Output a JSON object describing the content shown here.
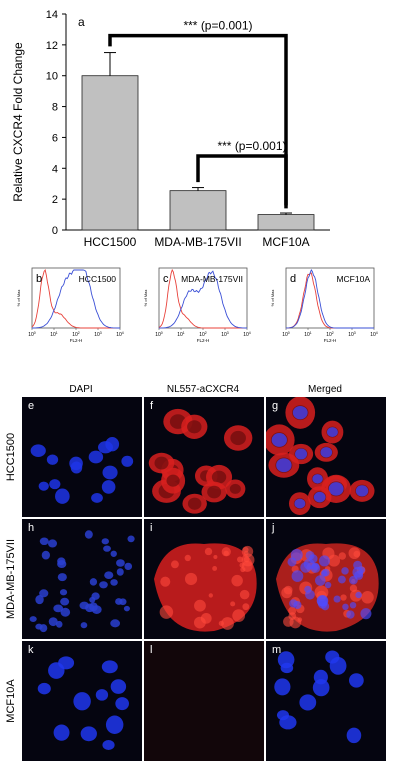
{
  "chart_data": [
    {
      "type": "bar",
      "panel": "a",
      "ylabel": "Relative CXCR4 Fold Change",
      "categories": [
        "HCC1500",
        "MDA-MB-175VII",
        "MCF10A"
      ],
      "values": [
        10.0,
        2.55,
        1.0
      ],
      "errors": [
        1.5,
        0.2,
        0.1
      ],
      "ylim": [
        0,
        14
      ],
      "yticks": [
        0,
        2,
        4,
        6,
        8,
        10,
        12,
        14
      ],
      "bar_color": "#c0c0c0",
      "annotations": [
        {
          "text": "*** (p=0.001)",
          "from": "HCC1500",
          "to": "MCF10A"
        },
        {
          "text": "*** (p=0.001)",
          "from": "MDA-MB-175VII",
          "to": "MCF10A"
        }
      ]
    },
    {
      "type": "line",
      "panels": [
        {
          "panel": "b",
          "title": "HCC1500",
          "shift": "strong"
        },
        {
          "panel": "c",
          "title": "MDA-MB-175VII",
          "shift": "moderate"
        },
        {
          "panel": "d",
          "title": "MCF10A",
          "shift": "none"
        }
      ],
      "ylabel": "% of Max",
      "xlabel": "FL2-H",
      "xscale": "log",
      "xtick_exponents": [
        "0",
        "1",
        "2",
        "3",
        "4"
      ],
      "series_colors": [
        "#e8413a",
        "#3a4fd6"
      ]
    }
  ],
  "microscopy": {
    "columns": [
      "DAPI",
      "NL557-aCXCR4",
      "Merged"
    ],
    "rows": [
      {
        "label": "HCC1500",
        "panels": [
          "e",
          "f",
          "g"
        ]
      },
      {
        "label": "MDA-MB-175VII",
        "panels": [
          "h",
          "i",
          "j"
        ]
      },
      {
        "label": "MCF10A",
        "panels": [
          "k",
          "l",
          "m"
        ]
      }
    ]
  }
}
